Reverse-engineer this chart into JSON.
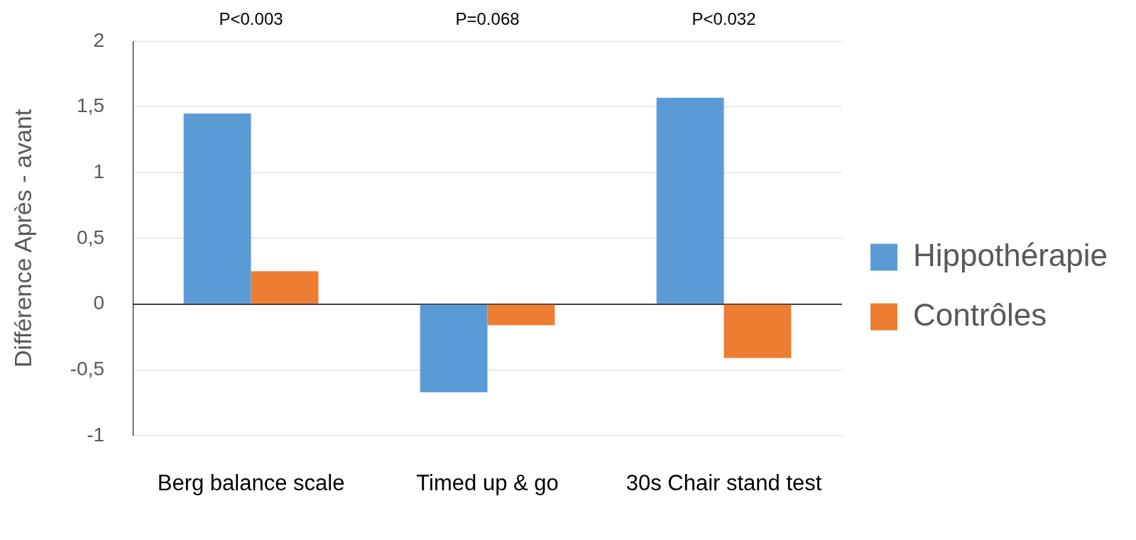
{
  "chart_data": {
    "type": "bar",
    "ylabel": "Différence Après - avant",
    "categories": [
      "Berg balance scale",
      "Timed up & go",
      "30s Chair stand test"
    ],
    "series": [
      {
        "name": "Hippothérapie",
        "color": "#5b9bd5",
        "values": [
          1.45,
          -0.67,
          1.57
        ]
      },
      {
        "name": "Contrôles",
        "color": "#ed7d31",
        "values": [
          0.25,
          -0.16,
          -0.41
        ]
      }
    ],
    "ylim": [
      -1,
      2
    ],
    "yticks": [
      {
        "value": -1,
        "label": "-1"
      },
      {
        "value": -0.5,
        "label": "-0,5"
      },
      {
        "value": 0,
        "label": "0"
      },
      {
        "value": 0.5,
        "label": "0,5"
      },
      {
        "value": 1,
        "label": "1"
      },
      {
        "value": 1.5,
        "label": "1,5"
      },
      {
        "value": 2,
        "label": "2"
      }
    ],
    "grid": "y",
    "legend": "right",
    "annotations": [
      "P<0.003",
      "P=0.068",
      "P<0.032"
    ]
  }
}
